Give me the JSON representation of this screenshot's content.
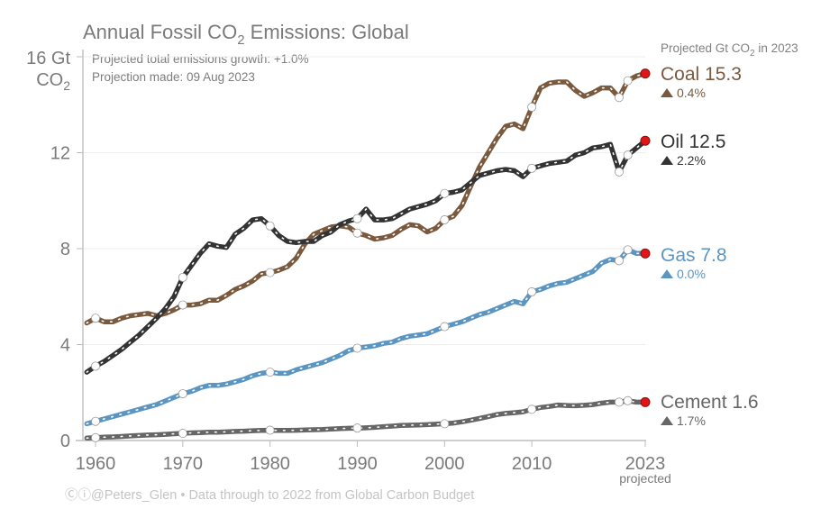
{
  "chart_data": {
    "type": "line",
    "title": "Annual Fossil CO2 Emissions: Global",
    "title_parts": {
      "pre": "Annual Fossil CO",
      "sub": "2",
      "post": " Emissions: Global"
    },
    "notes": [
      "Projected total emissions growth: +1.0%",
      "Projection made: 09 Aug 2023"
    ],
    "ylabel": "Gt CO2",
    "ylabel_parts": {
      "top": "16 Gt",
      "bottom_pre": "CO",
      "bottom_sub": "2"
    },
    "ylim": [
      0,
      16
    ],
    "yticks": [
      0,
      4,
      8,
      12,
      16
    ],
    "ytick_labels": [
      "0",
      "4",
      "8",
      "12"
    ],
    "xlim": [
      1958.5,
      2023
    ],
    "xticks": [
      1960,
      1970,
      1980,
      1990,
      2000,
      2010,
      2023
    ],
    "xtick_labels": [
      "1960",
      "1970",
      "1980",
      "1990",
      "2000",
      "2010",
      "2023"
    ],
    "xtick_sublabel": "projected",
    "grid": true,
    "legend_position": "right (direct labels)",
    "projected_header": {
      "pre": "Projected Gt CO",
      "sub": "2",
      "post": " in 2023"
    },
    "footer": "Ⓒⓘ@Peters_Glen  •  Data through to 2022 from Global Carbon Budget",
    "x": [
      1959,
      1960,
      1961,
      1962,
      1963,
      1964,
      1965,
      1966,
      1967,
      1968,
      1969,
      1970,
      1971,
      1972,
      1973,
      1974,
      1975,
      1976,
      1977,
      1978,
      1979,
      1980,
      1981,
      1982,
      1983,
      1984,
      1985,
      1986,
      1987,
      1988,
      1989,
      1990,
      1991,
      1992,
      1993,
      1994,
      1995,
      1996,
      1997,
      1998,
      1999,
      2000,
      2001,
      2002,
      2003,
      2004,
      2005,
      2006,
      2007,
      2008,
      2009,
      2010,
      2011,
      2012,
      2013,
      2014,
      2015,
      2016,
      2017,
      2018,
      2019,
      2020,
      2021,
      2022,
      2023
    ],
    "series": [
      {
        "name": "Coal",
        "color": "#7a5a3f",
        "label_value": "15.3",
        "change": "0.4%",
        "values": [
          4.9,
          5.1,
          4.95,
          4.95,
          5.1,
          5.2,
          5.25,
          5.3,
          5.2,
          5.3,
          5.45,
          5.65,
          5.65,
          5.7,
          5.85,
          5.85,
          6.05,
          6.3,
          6.45,
          6.65,
          6.95,
          7.0,
          7.1,
          7.25,
          7.6,
          8.2,
          8.6,
          8.75,
          8.9,
          8.95,
          8.9,
          8.65,
          8.55,
          8.4,
          8.45,
          8.55,
          8.8,
          9.0,
          8.95,
          8.7,
          8.85,
          9.2,
          9.35,
          9.8,
          10.6,
          11.4,
          12.0,
          12.6,
          13.1,
          13.2,
          13.0,
          13.9,
          14.7,
          14.9,
          14.95,
          14.95,
          14.6,
          14.35,
          14.5,
          14.7,
          14.7,
          14.3,
          15.0,
          15.2,
          15.3
        ]
      },
      {
        "name": "Oil",
        "color": "#333333",
        "label_value": "12.5",
        "change": "2.2%",
        "values": [
          2.85,
          3.1,
          3.3,
          3.55,
          3.8,
          4.1,
          4.4,
          4.75,
          5.1,
          5.5,
          6.0,
          6.8,
          7.3,
          7.8,
          8.2,
          8.1,
          8.05,
          8.6,
          8.85,
          9.2,
          9.25,
          8.95,
          8.55,
          8.3,
          8.25,
          8.3,
          8.3,
          8.55,
          8.7,
          9.0,
          9.15,
          9.25,
          9.65,
          9.2,
          9.2,
          9.25,
          9.45,
          9.65,
          9.75,
          9.85,
          10.0,
          10.3,
          10.35,
          10.45,
          10.75,
          11.05,
          11.15,
          11.25,
          11.3,
          11.25,
          11.0,
          11.35,
          11.45,
          11.55,
          11.6,
          11.65,
          11.9,
          12.0,
          12.2,
          12.25,
          12.35,
          11.2,
          11.9,
          12.2,
          12.5
        ]
      },
      {
        "name": "Gas",
        "color": "#5b95c2",
        "label_value": "7.8",
        "change": "0.0%",
        "values": [
          0.7,
          0.8,
          0.9,
          1.0,
          1.1,
          1.2,
          1.3,
          1.4,
          1.5,
          1.65,
          1.8,
          1.95,
          2.05,
          2.2,
          2.3,
          2.3,
          2.35,
          2.45,
          2.55,
          2.7,
          2.8,
          2.85,
          2.8,
          2.8,
          2.95,
          3.05,
          3.15,
          3.25,
          3.4,
          3.55,
          3.75,
          3.85,
          3.9,
          3.95,
          4.05,
          4.1,
          4.25,
          4.35,
          4.4,
          4.45,
          4.6,
          4.75,
          4.85,
          4.95,
          5.1,
          5.25,
          5.35,
          5.5,
          5.65,
          5.8,
          5.7,
          6.2,
          6.3,
          6.45,
          6.55,
          6.6,
          6.75,
          6.9,
          7.05,
          7.4,
          7.55,
          7.5,
          7.95,
          7.8,
          7.8
        ]
      },
      {
        "name": "Cement",
        "color": "#666666",
        "label_value": "1.6",
        "change": "1.7%",
        "values": [
          0.1,
          0.12,
          0.14,
          0.15,
          0.17,
          0.19,
          0.21,
          0.23,
          0.24,
          0.26,
          0.28,
          0.3,
          0.32,
          0.33,
          0.35,
          0.35,
          0.36,
          0.38,
          0.39,
          0.41,
          0.42,
          0.43,
          0.42,
          0.42,
          0.43,
          0.44,
          0.45,
          0.46,
          0.48,
          0.5,
          0.51,
          0.52,
          0.53,
          0.55,
          0.58,
          0.6,
          0.63,
          0.64,
          0.65,
          0.66,
          0.68,
          0.7,
          0.73,
          0.78,
          0.85,
          0.92,
          1.0,
          1.08,
          1.13,
          1.16,
          1.2,
          1.3,
          1.38,
          1.42,
          1.48,
          1.46,
          1.45,
          1.47,
          1.5,
          1.56,
          1.6,
          1.6,
          1.66,
          1.6,
          1.6
        ]
      }
    ]
  }
}
